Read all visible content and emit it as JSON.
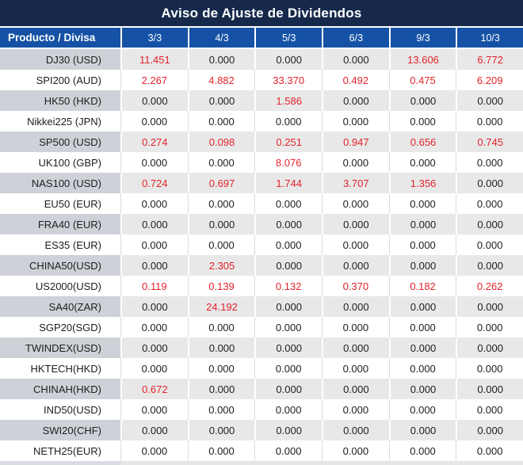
{
  "title": "Aviso de Ajuste de Dividendos",
  "colors": {
    "title_bg": "#16294b",
    "header_bg": "#1552a5",
    "gray_row_product_bg": "#ced2d8",
    "gray_row_value_bg": "#e8e8e8",
    "value_red": "#e3232b",
    "value_black": "#1d1d1d",
    "header_text": "#ffffff"
  },
  "chart_data": {
    "type": "table",
    "title": "Aviso de Ajuste de Dividendos",
    "product_header": "Producto / Divisa",
    "date_columns": [
      "3/3",
      "4/3",
      "5/3",
      "6/3",
      "9/3",
      "10/3"
    ],
    "rows": [
      {
        "product": "DJ30 (USD)",
        "values": [
          11.451,
          0.0,
          0.0,
          0.0,
          13.606,
          6.772
        ],
        "red": [
          true,
          false,
          false,
          false,
          true,
          true
        ]
      },
      {
        "product": "SPI200 (AUD)",
        "values": [
          2.267,
          4.882,
          33.37,
          0.492,
          0.475,
          6.209
        ],
        "red": [
          true,
          true,
          true,
          true,
          true,
          true
        ]
      },
      {
        "product": "HK50 (HKD)",
        "values": [
          0.0,
          0.0,
          1.586,
          0.0,
          0.0,
          0.0
        ],
        "red": [
          false,
          false,
          true,
          false,
          false,
          false
        ]
      },
      {
        "product": "Nikkei225 (JPN)",
        "values": [
          0.0,
          0.0,
          0.0,
          0.0,
          0.0,
          0.0
        ],
        "red": [
          false,
          false,
          false,
          false,
          false,
          false
        ]
      },
      {
        "product": "SP500 (USD)",
        "values": [
          0.274,
          0.098,
          0.251,
          0.947,
          0.656,
          0.745
        ],
        "red": [
          true,
          true,
          true,
          true,
          true,
          true
        ]
      },
      {
        "product": "UK100 (GBP)",
        "values": [
          0.0,
          0.0,
          8.076,
          0.0,
          0.0,
          0.0
        ],
        "red": [
          false,
          false,
          true,
          false,
          false,
          false
        ]
      },
      {
        "product": "NAS100 (USD)",
        "values": [
          0.724,
          0.697,
          1.744,
          3.707,
          1.356,
          0.0
        ],
        "red": [
          true,
          true,
          true,
          true,
          true,
          false
        ]
      },
      {
        "product": "EU50 (EUR)",
        "values": [
          0.0,
          0.0,
          0.0,
          0.0,
          0.0,
          0.0
        ],
        "red": [
          false,
          false,
          false,
          false,
          false,
          false
        ]
      },
      {
        "product": "FRA40 (EUR)",
        "values": [
          0.0,
          0.0,
          0.0,
          0.0,
          0.0,
          0.0
        ],
        "red": [
          false,
          false,
          false,
          false,
          false,
          false
        ]
      },
      {
        "product": "ES35 (EUR)",
        "values": [
          0.0,
          0.0,
          0.0,
          0.0,
          0.0,
          0.0
        ],
        "red": [
          false,
          false,
          false,
          false,
          false,
          false
        ]
      },
      {
        "product": "CHINA50(USD)",
        "values": [
          0.0,
          2.305,
          0.0,
          0.0,
          0.0,
          0.0
        ],
        "red": [
          false,
          true,
          false,
          false,
          false,
          false
        ]
      },
      {
        "product": "US2000(USD)",
        "values": [
          0.119,
          0.139,
          0.132,
          0.37,
          0.182,
          0.262
        ],
        "red": [
          true,
          true,
          true,
          true,
          true,
          true
        ]
      },
      {
        "product": "SA40(ZAR)",
        "values": [
          0.0,
          24.192,
          0.0,
          0.0,
          0.0,
          0.0
        ],
        "red": [
          false,
          true,
          false,
          false,
          false,
          false
        ]
      },
      {
        "product": "SGP20(SGD)",
        "values": [
          0.0,
          0.0,
          0.0,
          0.0,
          0.0,
          0.0
        ],
        "red": [
          false,
          false,
          false,
          false,
          false,
          false
        ]
      },
      {
        "product": "TWINDEX(USD)",
        "values": [
          0.0,
          0.0,
          0.0,
          0.0,
          0.0,
          0.0
        ],
        "red": [
          false,
          false,
          false,
          false,
          false,
          false
        ]
      },
      {
        "product": "HKTECH(HKD)",
        "values": [
          0.0,
          0.0,
          0.0,
          0.0,
          0.0,
          0.0
        ],
        "red": [
          false,
          false,
          false,
          false,
          false,
          false
        ]
      },
      {
        "product": "CHINAH(HKD)",
        "values": [
          0.672,
          0.0,
          0.0,
          0.0,
          0.0,
          0.0
        ],
        "red": [
          true,
          false,
          false,
          false,
          false,
          false
        ]
      },
      {
        "product": "IND50(USD)",
        "values": [
          0.0,
          0.0,
          0.0,
          0.0,
          0.0,
          0.0
        ],
        "red": [
          false,
          false,
          false,
          false,
          false,
          false
        ]
      },
      {
        "product": "SWI20(CHF)",
        "values": [
          0.0,
          0.0,
          0.0,
          0.0,
          0.0,
          0.0
        ],
        "red": [
          false,
          false,
          false,
          false,
          false,
          false
        ]
      },
      {
        "product": "NETH25(EUR)",
        "values": [
          0.0,
          0.0,
          0.0,
          0.0,
          0.0,
          0.0
        ],
        "red": [
          false,
          false,
          false,
          false,
          false,
          false
        ]
      }
    ],
    "value_decimals": 3,
    "layout": {
      "grid": "alternating-row-shading",
      "red_means": "non-zero dividend adjustment highlighted"
    }
  }
}
